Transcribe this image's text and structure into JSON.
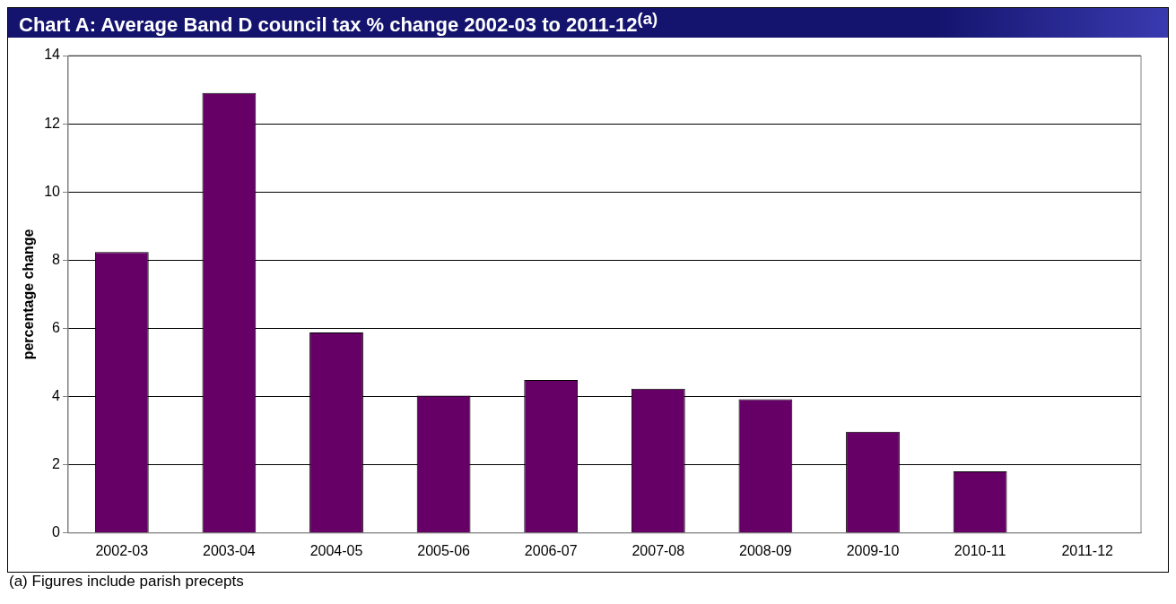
{
  "chart_data": {
    "type": "bar",
    "title": "Chart A: Average Band D council tax % change 2002-03 to 2011-12$^{(a)}$",
    "ylabel": "percentage change",
    "categories": [
      "2002-03",
      "2003-04",
      "2004-05",
      "2005-06",
      "2006-07",
      "2007-08",
      "2008-09",
      "2009-10",
      "2010-11",
      "2011-12"
    ],
    "values": [
      8.24,
      12.9,
      5.88,
      4.03,
      4.49,
      4.23,
      3.92,
      2.97,
      1.81,
      0
    ],
    "color": "#660066",
    "ylim": [
      0,
      14
    ],
    "yticks": [
      0,
      2,
      4,
      6,
      8,
      10,
      12,
      14
    ],
    "grid": "y",
    "legend": false,
    "annotations": [
      "(a) Figures include parish precepts"
    ]
  }
}
